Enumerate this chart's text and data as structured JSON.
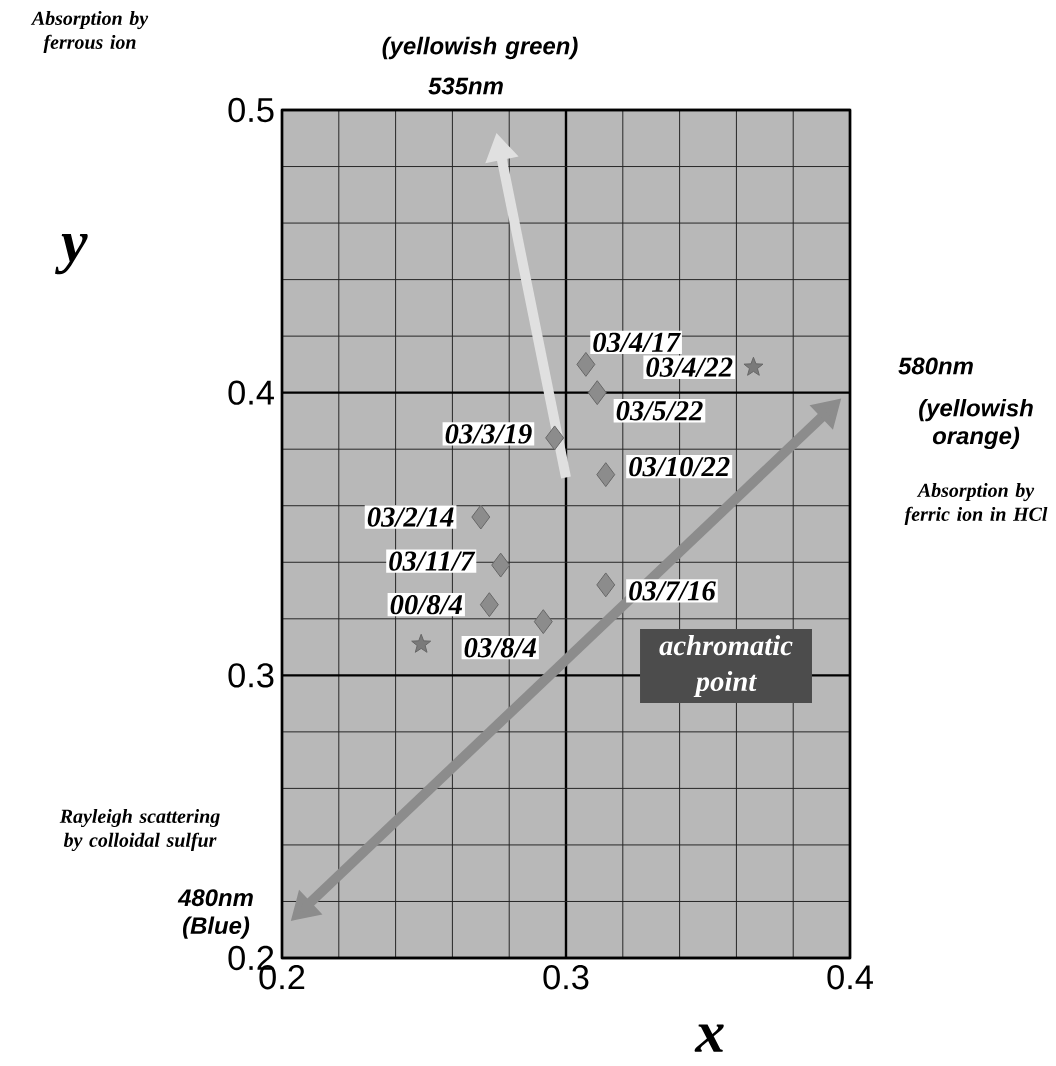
{
  "chart_data": {
    "type": "scatter",
    "xlabel": "x",
    "ylabel": "y",
    "xlim": [
      0.2,
      0.4
    ],
    "ylim": [
      0.2,
      0.5
    ],
    "xticks": [
      0.2,
      0.3,
      0.4
    ],
    "yticks": [
      0.2,
      0.3,
      0.4,
      0.5
    ],
    "grid": true,
    "series": [
      {
        "color": "#8c8c8c",
        "marker": "diamond",
        "x": [
          0.307,
          0.311,
          0.296,
          0.314,
          0.27,
          0.277,
          0.273,
          0.292,
          0.314
        ],
        "values": [
          0.41,
          0.4,
          0.384,
          0.371,
          0.356,
          0.339,
          0.325,
          0.319,
          0.332
        ]
      },
      {
        "color": "#7a7a7a",
        "marker": "star",
        "x": [
          0.366,
          0.249
        ],
        "values": [
          0.409,
          0.311
        ]
      }
    ],
    "annotations": [
      {
        "text": "03/4/17",
        "x": 0.307,
        "y": 0.41
      },
      {
        "text": "03/5/22",
        "x": 0.311,
        "y": 0.4
      },
      {
        "text": "03/4/22",
        "x": 0.366,
        "y": 0.409
      },
      {
        "text": "03/3/19",
        "x": 0.296,
        "y": 0.384
      },
      {
        "text": "03/10/22",
        "x": 0.314,
        "y": 0.371
      },
      {
        "text": "03/2/14",
        "x": 0.27,
        "y": 0.356
      },
      {
        "text": "03/11/7",
        "x": 0.277,
        "y": 0.339
      },
      {
        "text": "00/8/4",
        "x": 0.273,
        "y": 0.325
      },
      {
        "text": "03/8/4",
        "x": 0.292,
        "y": 0.319
      },
      {
        "text": "03/7/16",
        "x": 0.314,
        "y": 0.332
      },
      "achromatic point",
      "Absorption by ferrous ion",
      "(yellowish green)",
      "535nm",
      "580nm",
      "(yellowish orange)",
      "Absorption by ferric ion in HCl",
      "Rayleigh scattering by colloidal sulfur",
      "480nm (Blue)"
    ]
  }
}
